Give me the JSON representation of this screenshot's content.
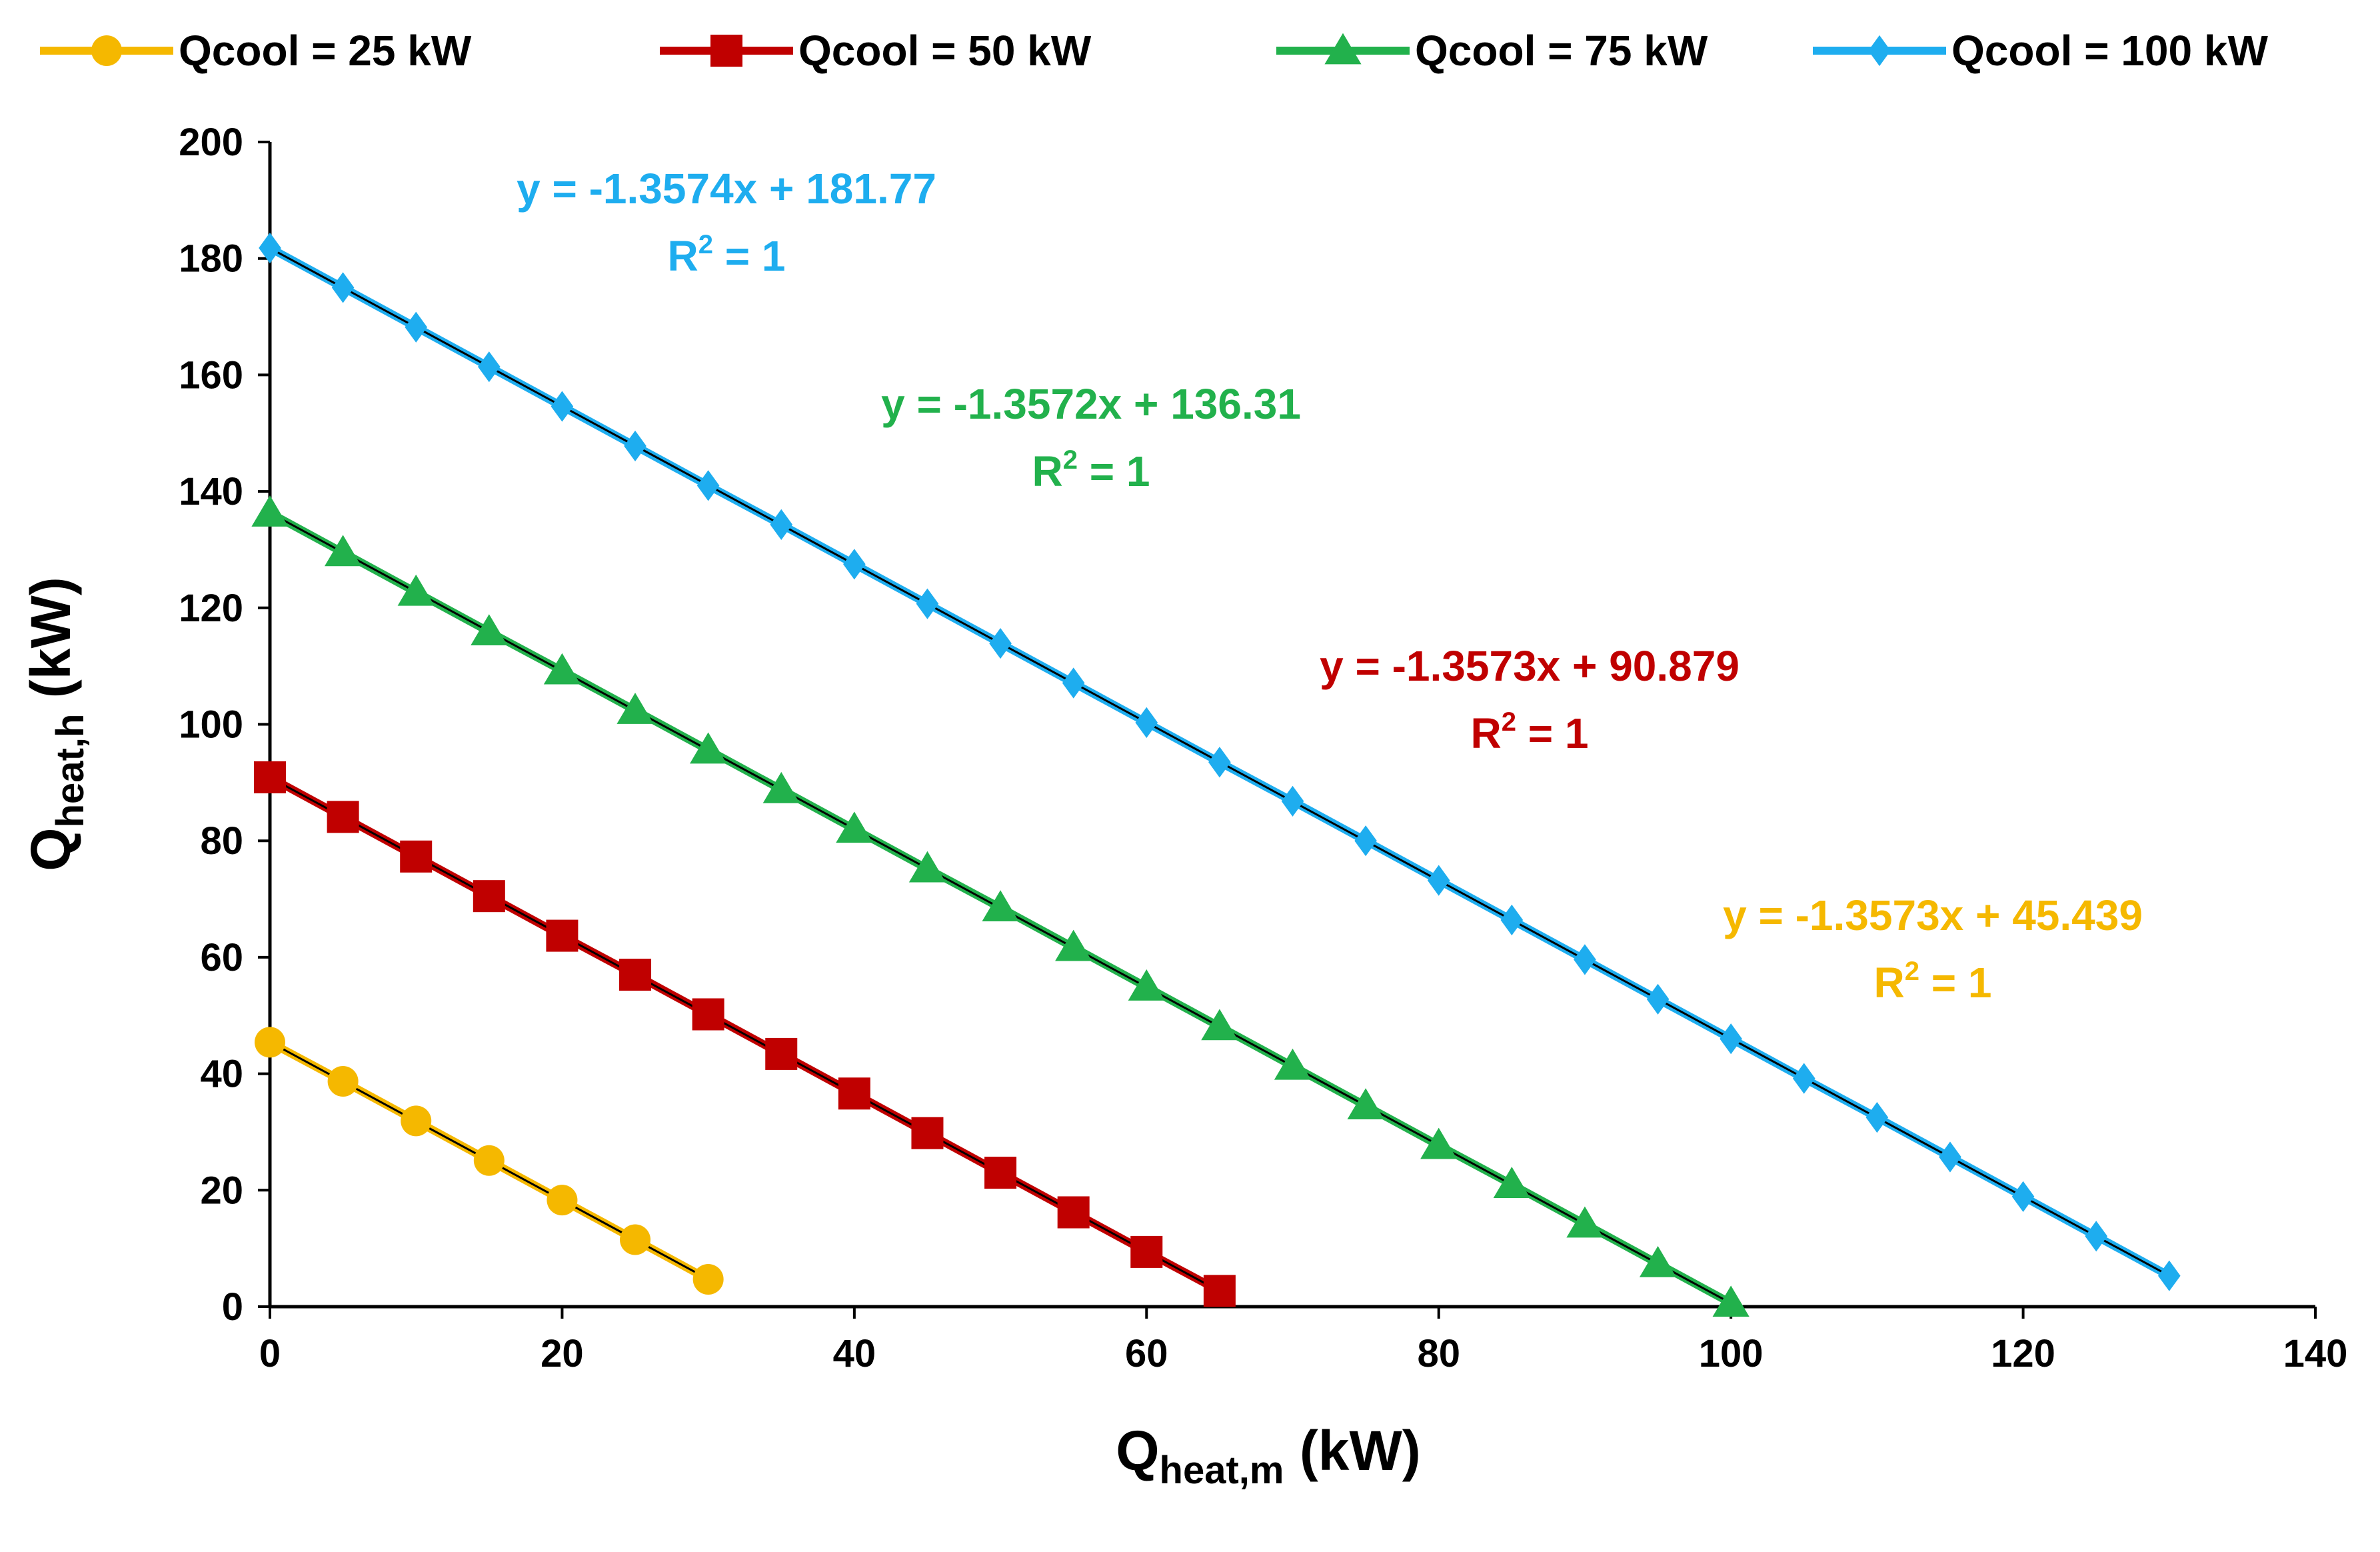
{
  "chart_data": {
    "type": "scatter",
    "title": "",
    "xlabel": {
      "main": "Q",
      "sub": "heat,m",
      "unit": " (kW)"
    },
    "ylabel": {
      "main": "Q",
      "sub": "heat,h",
      "unit": " (kW)"
    },
    "xlim": [
      0,
      140
    ],
    "ylim": [
      0,
      200
    ],
    "x_ticks": [
      "0",
      "20",
      "40",
      "60",
      "80",
      "100",
      "120",
      "140"
    ],
    "y_ticks": [
      "0",
      "20",
      "40",
      "60",
      "80",
      "100",
      "120",
      "140",
      "160",
      "180",
      "200"
    ],
    "grid": false,
    "legend_position": "top",
    "series": [
      {
        "name": "Qcool = 25 kW",
        "color": "#F5B800",
        "marker": "circle",
        "x": [
          0,
          5,
          10,
          15,
          20,
          25,
          30
        ],
        "y": [
          45.4,
          38.7,
          31.9,
          25.1,
          18.3,
          11.5,
          4.7
        ],
        "trendline": {
          "slope": -1.3573,
          "intercept": 45.439
        },
        "equation": "y = -1.3573x + 45.439",
        "r2_base": "R",
        "r2_sup": "2",
        "r2_value": " = 1"
      },
      {
        "name": "Qcool = 50 kW",
        "color": "#C00000",
        "marker": "square",
        "x": [
          0,
          5,
          10,
          15,
          20,
          25,
          30,
          35,
          40,
          45,
          50,
          55,
          60,
          65
        ],
        "y": [
          90.9,
          84.1,
          77.3,
          70.5,
          63.7,
          57.0,
          50.2,
          43.4,
          36.6,
          29.8,
          23.0,
          16.2,
          9.4,
          2.7
        ],
        "trendline": {
          "slope": -1.3573,
          "intercept": 90.879
        },
        "equation": "y = -1.3573x + 90.879",
        "r2_base": "R",
        "r2_sup": "2",
        "r2_value": " = 1"
      },
      {
        "name": "Qcool = 75 kW",
        "color": "#22B14C",
        "marker": "triangle",
        "x": [
          0,
          5,
          10,
          15,
          20,
          25,
          30,
          35,
          40,
          45,
          50,
          55,
          60,
          65,
          70,
          75,
          80,
          85,
          90,
          95,
          100
        ],
        "y": [
          136.3,
          129.5,
          122.7,
          115.9,
          109.2,
          102.4,
          95.6,
          88.8,
          82.0,
          75.2,
          68.5,
          61.7,
          54.9,
          48.1,
          41.3,
          34.5,
          27.7,
          21.0,
          14.2,
          7.4,
          0.6
        ],
        "trendline": {
          "slope": -1.3572,
          "intercept": 136.31
        },
        "equation": "y = -1.3572x + 136.31",
        "r2_base": "R",
        "r2_sup": "2",
        "r2_value": " = 1"
      },
      {
        "name": "Qcool = 100 kW",
        "color": "#1EADEF",
        "marker": "diamond",
        "x": [
          0,
          5,
          10,
          15,
          20,
          25,
          30,
          35,
          40,
          45,
          50,
          55,
          60,
          65,
          70,
          75,
          80,
          85,
          90,
          95,
          100,
          105,
          110,
          115,
          120,
          125,
          130
        ],
        "y": [
          181.8,
          175.0,
          168.2,
          161.4,
          154.6,
          147.8,
          141.0,
          134.3,
          127.5,
          120.7,
          113.9,
          107.1,
          100.3,
          93.5,
          86.8,
          80.0,
          73.2,
          66.4,
          59.6,
          52.8,
          46.0,
          39.2,
          32.5,
          25.7,
          18.9,
          12.1,
          5.3
        ],
        "trendline": {
          "slope": -1.3574,
          "intercept": 181.77
        },
        "equation": "y = -1.3574x + 181.77",
        "r2_base": "R",
        "r2_sup": "2",
        "r2_value": " = 1"
      }
    ]
  }
}
